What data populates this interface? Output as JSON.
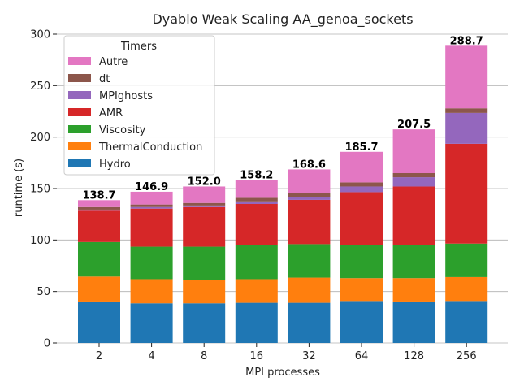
{
  "chart_data": {
    "type": "bar",
    "stacked": true,
    "title": "Dyablo Weak Scaling AA_genoa_sockets",
    "xlabel": "MPI processes",
    "ylabel": "runtime (s)",
    "ylim": [
      0,
      300
    ],
    "yticks": [
      0,
      50,
      100,
      150,
      200,
      250,
      300
    ],
    "grid": "y",
    "legend_title": "Timers",
    "legend_position": "top-left",
    "categories": [
      "2",
      "4",
      "8",
      "16",
      "32",
      "64",
      "128",
      "256"
    ],
    "series": [
      {
        "name": "Hydro",
        "color": "#1f77b4",
        "values": [
          39.5,
          38.5,
          38.5,
          39.0,
          39.0,
          40.0,
          39.5,
          40.0
        ]
      },
      {
        "name": "ThermalConduction",
        "color": "#ff7f0e",
        "values": [
          25.0,
          23.5,
          23.0,
          23.0,
          24.5,
          23.0,
          23.5,
          24.0
        ]
      },
      {
        "name": "Viscosity",
        "color": "#2ca02c",
        "values": [
          33.5,
          31.5,
          32.0,
          33.0,
          32.5,
          32.0,
          32.5,
          32.5
        ]
      },
      {
        "name": "AMR",
        "color": "#d62728",
        "values": [
          30.5,
          37.0,
          38.5,
          40.0,
          43.0,
          51.5,
          56.5,
          97.0
        ]
      },
      {
        "name": "MPIghosts",
        "color": "#9467bd",
        "values": [
          1.0,
          1.5,
          1.5,
          2.5,
          3.0,
          5.5,
          9.0,
          30.0
        ]
      },
      {
        "name": "dt",
        "color": "#8c564b",
        "values": [
          2.5,
          2.5,
          2.5,
          3.5,
          3.5,
          4.0,
          4.0,
          4.5
        ]
      },
      {
        "name": "Autre",
        "color": "#e377c2",
        "values": [
          6.7,
          12.4,
          16.0,
          17.2,
          23.1,
          29.7,
          42.5,
          60.7
        ]
      }
    ],
    "totals": [
      "138.7",
      "146.9",
      "152.0",
      "158.2",
      "168.6",
      "185.7",
      "207.5",
      "288.7"
    ]
  }
}
